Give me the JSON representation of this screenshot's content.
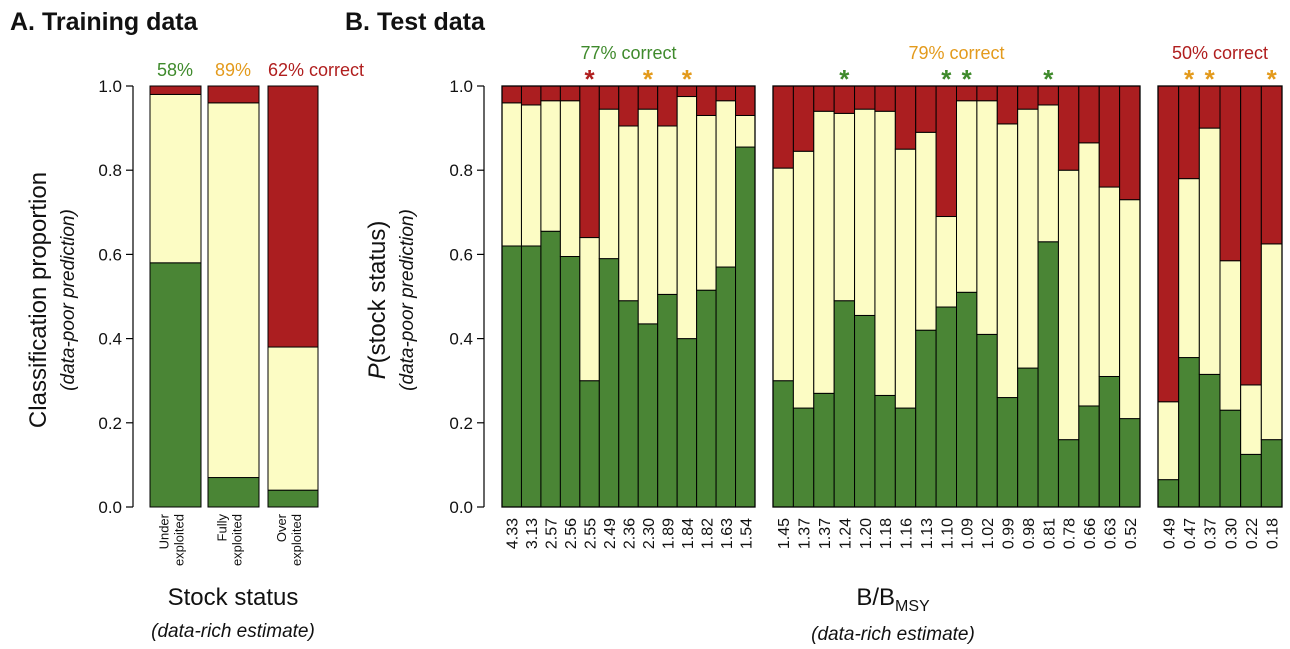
{
  "chart_data": [
    {
      "type": "bar",
      "stacked": true,
      "title": "A. Training data",
      "y_label": {
        "main": "Classification proportion",
        "sub": "(data-poor prediction)"
      },
      "x_label": {
        "main": "Stock status",
        "sub": "(data-rich estimate)"
      },
      "categories": [
        [
          "Under",
          "exploited"
        ],
        [
          "Fully",
          "exploited"
        ],
        [
          "Over",
          "exploited"
        ]
      ],
      "annotations": [
        {
          "text": "58%",
          "color": "#3f8a2c"
        },
        {
          "text": "89%",
          "color": "#e39a1c"
        },
        {
          "text": "62% correct",
          "color": "#b01e1e"
        }
      ],
      "series": [
        {
          "color": "#4a8535",
          "values": [
            0.58,
            0.07,
            0.04
          ]
        },
        {
          "color": "#fcfcc4",
          "values": [
            0.4,
            0.89,
            0.34
          ]
        },
        {
          "color": "#ab1e20",
          "values": [
            0.02,
            0.04,
            0.62
          ]
        }
      ],
      "ylim": [
        0,
        1
      ],
      "yticks": [
        {
          "value": 0,
          "label": "0.0"
        },
        0.2,
        0.4,
        0.6,
        0.8,
        {
          "value": 1,
          "label": "1.0"
        }
      ]
    },
    {
      "type": "bar",
      "stacked": true,
      "title": "B. Test data",
      "y_label": {
        "italic": "P",
        "main": "(stock status)",
        "sub": "(data-poor prediction)"
      },
      "x_label": {
        "main": "B/B",
        "subscript": "MSY",
        "sub": "(data-rich estimate)"
      },
      "ylim": [
        0,
        1
      ],
      "yticks": [
        {
          "value": 0,
          "label": "0.0"
        },
        0.2,
        0.4,
        0.6,
        0.8,
        {
          "value": 1,
          "label": "1.0"
        }
      ],
      "groups": [
        {
          "annotation": {
            "text": "77% correct",
            "color": "#3f8a2c"
          },
          "categories": [
            "4.33",
            "3.13",
            "2.57",
            "2.56",
            "2.55",
            "2.49",
            "2.36",
            "2.30",
            "1.89",
            "1.84",
            "1.82",
            "1.63",
            "1.54"
          ],
          "stars": [
            null,
            null,
            null,
            null,
            "*",
            null,
            null,
            "*",
            null,
            "*",
            null,
            null,
            null
          ],
          "star_colors": [
            null,
            null,
            null,
            null,
            "#b01e1e",
            null,
            null,
            "#e39a1c",
            null,
            "#e39a1c",
            null,
            null,
            null
          ],
          "series": [
            {
              "color": "#4a8535",
              "values": [
                0.62,
                0.62,
                0.655,
                0.595,
                0.3,
                0.59,
                0.49,
                0.435,
                0.505,
                0.4,
                0.515,
                0.57,
                0.855
              ]
            },
            {
              "color": "#fcfcc4",
              "values": [
                0.34,
                0.335,
                0.31,
                0.37,
                0.34,
                0.355,
                0.415,
                0.51,
                0.4,
                0.575,
                0.415,
                0.395,
                0.075
              ]
            },
            {
              "color": "#ab1e20",
              "values": [
                0.04,
                0.045,
                0.035,
                0.035,
                0.36,
                0.055,
                0.095,
                0.055,
                0.095,
                0.025,
                0.07,
                0.035,
                0.07
              ]
            }
          ]
        },
        {
          "annotation": {
            "text": "79% correct",
            "color": "#e39a1c"
          },
          "categories": [
            "1.45",
            "1.37",
            "1.37",
            "1.24",
            "1.20",
            "1.18",
            "1.16",
            "1.13",
            "1.10",
            "1.09",
            "1.02",
            "0.99",
            "0.98",
            "0.81",
            "0.78",
            "0.66",
            "0.63",
            "0.52"
          ],
          "stars": [
            null,
            null,
            null,
            "*",
            null,
            null,
            null,
            null,
            "*",
            "*",
            null,
            null,
            null,
            "*",
            null,
            null,
            null,
            null
          ],
          "star_colors": [
            null,
            null,
            null,
            "#3f8a2c",
            null,
            null,
            null,
            null,
            "#3f8a2c",
            "#3f8a2c",
            null,
            null,
            null,
            "#3f8a2c",
            null,
            null,
            null,
            null
          ],
          "series": [
            {
              "color": "#4a8535",
              "values": [
                0.3,
                0.235,
                0.27,
                0.49,
                0.455,
                0.265,
                0.235,
                0.42,
                0.475,
                0.51,
                0.41,
                0.26,
                0.33,
                0.63,
                0.16,
                0.24,
                0.31,
                0.21
              ]
            },
            {
              "color": "#fcfcc4",
              "values": [
                0.505,
                0.61,
                0.67,
                0.445,
                0.49,
                0.675,
                0.615,
                0.47,
                0.215,
                0.455,
                0.555,
                0.65,
                0.615,
                0.325,
                0.64,
                0.625,
                0.45,
                0.52
              ]
            },
            {
              "color": "#ab1e20",
              "values": [
                0.195,
                0.155,
                0.06,
                0.065,
                0.055,
                0.06,
                0.15,
                0.11,
                0.31,
                0.035,
                0.035,
                0.09,
                0.055,
                0.045,
                0.2,
                0.135,
                0.24,
                0.27
              ]
            }
          ]
        },
        {
          "annotation": {
            "text": "50% correct",
            "color": "#b01e1e"
          },
          "categories": [
            "0.49",
            "0.47",
            "0.37",
            "0.30",
            "0.22",
            "0.18"
          ],
          "stars": [
            null,
            "*",
            "*",
            null,
            null,
            "*"
          ],
          "star_colors": [
            null,
            "#e39a1c",
            "#e39a1c",
            null,
            null,
            "#e39a1c"
          ],
          "series": [
            {
              "color": "#4a8535",
              "values": [
                0.065,
                0.355,
                0.315,
                0.23,
                0.125,
                0.16
              ]
            },
            {
              "color": "#fcfcc4",
              "values": [
                0.185,
                0.425,
                0.585,
                0.355,
                0.165,
                0.465
              ]
            },
            {
              "color": "#ab1e20",
              "values": [
                0.75,
                0.22,
                0.1,
                0.415,
                0.71,
                0.375
              ]
            }
          ]
        }
      ]
    }
  ]
}
